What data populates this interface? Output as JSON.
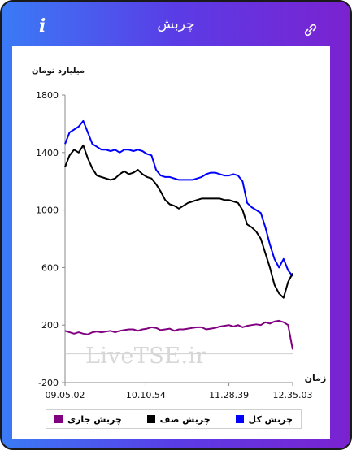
{
  "header": {
    "title": "چربش",
    "info_glyph": "i",
    "info_icon": "info-icon",
    "link_icon": "link-icon",
    "colors": {
      "gradient_start": "#3a7bf6",
      "gradient_end": "#7b22d0"
    }
  },
  "watermark": "LiveTSE.ir",
  "legend": [
    {
      "label": "چربش کل",
      "color": "#0000ff"
    },
    {
      "label": "چربش صف",
      "color": "#000000"
    },
    {
      "label": "چربش جاری",
      "color": "#800080"
    }
  ],
  "chart_data": {
    "type": "line",
    "title": "",
    "ylabel": "میلیارد تومان",
    "xlabel": "زمان",
    "ylim": [
      -200,
      1800
    ],
    "yticks": [
      -200,
      200,
      600,
      1000,
      1400,
      1800
    ],
    "xticks": [
      "09.05.02",
      "10.10.54",
      "11.28.39",
      "12.35.03"
    ],
    "grid": false,
    "legend_position": "bottom",
    "x_range": [
      0,
      100
    ],
    "xtick_positions": [
      0,
      35.5,
      72,
      100
    ],
    "series": [
      {
        "name": "چربش کل",
        "color": "#0000ff",
        "x": [
          0,
          2,
          4,
          6,
          8,
          10,
          12,
          14,
          16,
          18,
          20,
          22,
          24,
          26,
          28,
          30,
          32,
          34,
          36,
          38,
          40,
          42,
          44,
          46,
          48,
          50,
          52,
          54,
          56,
          58,
          60,
          62,
          64,
          66,
          68,
          70,
          72,
          74,
          76,
          78,
          80,
          82,
          84,
          86,
          88,
          90,
          92,
          94,
          96,
          98,
          100
        ],
        "y": [
          1460,
          1540,
          1560,
          1580,
          1620,
          1540,
          1460,
          1440,
          1420,
          1420,
          1410,
          1420,
          1400,
          1420,
          1420,
          1410,
          1420,
          1410,
          1390,
          1380,
          1280,
          1240,
          1230,
          1230,
          1220,
          1210,
          1210,
          1210,
          1210,
          1220,
          1230,
          1250,
          1260,
          1260,
          1250,
          1240,
          1240,
          1250,
          1240,
          1200,
          1050,
          1020,
          1000,
          980,
          880,
          760,
          660,
          600,
          660,
          580,
          540
        ]
      },
      {
        "name": "چربش صف",
        "color": "#000000",
        "x": [
          0,
          2,
          4,
          6,
          8,
          10,
          12,
          14,
          16,
          18,
          20,
          22,
          24,
          26,
          28,
          30,
          32,
          34,
          36,
          38,
          40,
          42,
          44,
          46,
          48,
          50,
          52,
          54,
          56,
          58,
          60,
          62,
          64,
          66,
          68,
          70,
          72,
          74,
          76,
          78,
          80,
          82,
          84,
          86,
          88,
          90,
          92,
          94,
          96,
          98,
          100
        ],
        "y": [
          1300,
          1380,
          1420,
          1400,
          1450,
          1360,
          1290,
          1240,
          1230,
          1220,
          1210,
          1220,
          1250,
          1270,
          1250,
          1260,
          1280,
          1250,
          1230,
          1220,
          1180,
          1130,
          1070,
          1040,
          1030,
          1010,
          1030,
          1050,
          1060,
          1070,
          1080,
          1080,
          1080,
          1080,
          1080,
          1070,
          1070,
          1060,
          1050,
          1000,
          900,
          880,
          850,
          800,
          700,
          600,
          480,
          420,
          390,
          500,
          560
        ]
      },
      {
        "name": "چربش جاری",
        "color": "#800080",
        "x": [
          0,
          2,
          4,
          6,
          8,
          10,
          12,
          14,
          16,
          18,
          20,
          22,
          24,
          26,
          28,
          30,
          32,
          34,
          36,
          38,
          40,
          42,
          44,
          46,
          48,
          50,
          52,
          54,
          56,
          58,
          60,
          62,
          64,
          66,
          68,
          70,
          72,
          74,
          76,
          78,
          80,
          82,
          84,
          86,
          88,
          90,
          92,
          94,
          96,
          98,
          100
        ],
        "y": [
          160,
          150,
          140,
          150,
          140,
          135,
          150,
          155,
          150,
          155,
          160,
          150,
          160,
          165,
          170,
          170,
          160,
          170,
          175,
          185,
          180,
          165,
          170,
          175,
          160,
          170,
          170,
          175,
          180,
          185,
          185,
          170,
          175,
          180,
          190,
          195,
          200,
          190,
          200,
          185,
          195,
          200,
          205,
          200,
          220,
          210,
          225,
          230,
          220,
          200,
          30
        ]
      }
    ]
  }
}
